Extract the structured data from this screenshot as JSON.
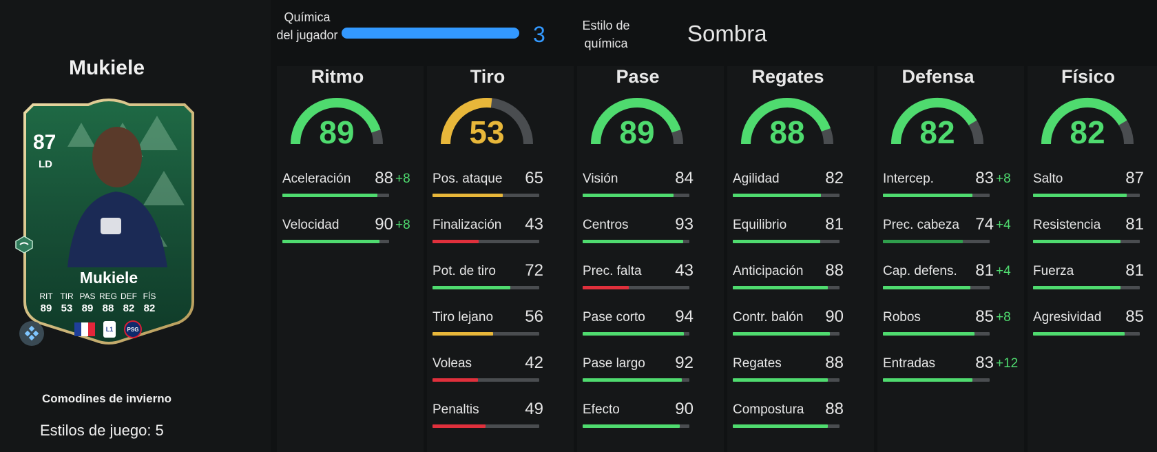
{
  "left": {
    "player_title": "Mukiele",
    "card": {
      "rating": "87",
      "position": "LD",
      "name": "Mukiele",
      "stat_labels": [
        "RIT",
        "TIR",
        "PAS",
        "REG",
        "DEF",
        "FÍS"
      ],
      "stat_values": [
        "89",
        "53",
        "89",
        "88",
        "82",
        "82"
      ]
    },
    "card_type": "Comodines de invierno",
    "playstyles": "Estilos de juego: 5"
  },
  "header": {
    "chem_label": "Química del jugador",
    "chem_value": "3",
    "style_label": "Estilo de química",
    "style_value": "Sombra"
  },
  "colors": {
    "green": "#4fdb6f",
    "yellow": "#e8b73a",
    "red": "#e0303c",
    "blue": "#3399ff",
    "dark_green": "#2f9e4c"
  },
  "categories": [
    {
      "title": "Ritmo",
      "value": "89",
      "color": "green",
      "stats": [
        {
          "name": "Aceleración",
          "value": "88",
          "boost": "+8",
          "color": "green"
        },
        {
          "name": "Velocidad",
          "value": "90",
          "boost": "+8",
          "color": "green"
        }
      ]
    },
    {
      "title": "Tiro",
      "value": "53",
      "color": "yellow",
      "stats": [
        {
          "name": "Pos. ataque",
          "value": "65",
          "boost": "",
          "color": "yellow"
        },
        {
          "name": "Finalización",
          "value": "43",
          "boost": "",
          "color": "red"
        },
        {
          "name": "Pot. de tiro",
          "value": "72",
          "boost": "",
          "color": "green"
        },
        {
          "name": "Tiro lejano",
          "value": "56",
          "boost": "",
          "color": "yellow"
        },
        {
          "name": "Voleas",
          "value": "42",
          "boost": "",
          "color": "red"
        },
        {
          "name": "Penaltis",
          "value": "49",
          "boost": "",
          "color": "red"
        }
      ]
    },
    {
      "title": "Pase",
      "value": "89",
      "color": "green",
      "stats": [
        {
          "name": "Visión",
          "value": "84",
          "boost": "",
          "color": "green"
        },
        {
          "name": "Centros",
          "value": "93",
          "boost": "",
          "color": "green"
        },
        {
          "name": "Prec. falta",
          "value": "43",
          "boost": "",
          "color": "red"
        },
        {
          "name": "Pase corto",
          "value": "94",
          "boost": "",
          "color": "green"
        },
        {
          "name": "Pase largo",
          "value": "92",
          "boost": "",
          "color": "green"
        },
        {
          "name": "Efecto",
          "value": "90",
          "boost": "",
          "color": "green"
        }
      ]
    },
    {
      "title": "Regates",
      "value": "88",
      "color": "green",
      "stats": [
        {
          "name": "Agilidad",
          "value": "82",
          "boost": "",
          "color": "green"
        },
        {
          "name": "Equilibrio",
          "value": "81",
          "boost": "",
          "color": "green"
        },
        {
          "name": "Anticipación",
          "value": "88",
          "boost": "",
          "color": "green"
        },
        {
          "name": "Contr. balón",
          "value": "90",
          "boost": "",
          "color": "green"
        },
        {
          "name": "Regates",
          "value": "88",
          "boost": "",
          "color": "green"
        },
        {
          "name": "Compostura",
          "value": "88",
          "boost": "",
          "color": "green"
        }
      ]
    },
    {
      "title": "Defensa",
      "value": "82",
      "color": "green",
      "stats": [
        {
          "name": "Intercep.",
          "value": "83",
          "boost": "+8",
          "color": "green"
        },
        {
          "name": "Prec. cabeza",
          "value": "74",
          "boost": "+4",
          "color": "dark_green"
        },
        {
          "name": "Cap. defens.",
          "value": "81",
          "boost": "+4",
          "color": "green"
        },
        {
          "name": "Robos",
          "value": "85",
          "boost": "+8",
          "color": "green"
        },
        {
          "name": "Entradas",
          "value": "83",
          "boost": "+12",
          "color": "green"
        }
      ]
    },
    {
      "title": "Físico",
      "value": "82",
      "color": "green",
      "stats": [
        {
          "name": "Salto",
          "value": "87",
          "boost": "",
          "color": "green"
        },
        {
          "name": "Resistencia",
          "value": "81",
          "boost": "",
          "color": "green"
        },
        {
          "name": "Fuerza",
          "value": "81",
          "boost": "",
          "color": "green"
        },
        {
          "name": "Agresividad",
          "value": "85",
          "boost": "",
          "color": "green"
        }
      ]
    }
  ]
}
